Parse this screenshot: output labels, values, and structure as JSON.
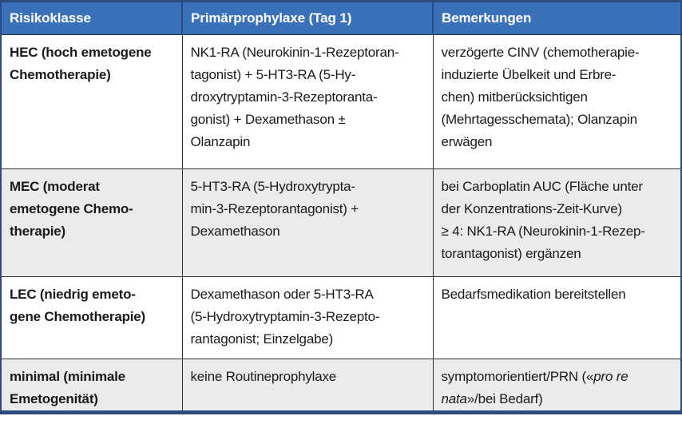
{
  "colors": {
    "header_bg": "#3b71b8",
    "header_text": "#ffffff",
    "frame": "#2b4a7d",
    "grid": "#2f2f2f",
    "row_bg": "#ffffff",
    "row_alt_bg": "#ebebeb",
    "text": "#1a1a1a"
  },
  "table": {
    "columns": [
      "Risikoklasse",
      "Primärprophylaxe (Tag 1)",
      "Bemerkungen"
    ],
    "rows": [
      {
        "risk": [
          "HEC (hoch emetogene",
          "Chemotherapie)"
        ],
        "prophylaxis": [
          "NK1-RA (Neurokinin-1-Rezeptoran-",
          "tagonist) + 5-HT3-RA (5-Hy-",
          "droxytryptamin-3-Rezeptoranta-",
          "gonist) + Dexamethason ±",
          "Olanzapin"
        ],
        "remarks": [
          "verzögerte CINV (chemotherapie-",
          "induzierte Übelkeit und Erbre-",
          "chen) mitberücksichtigen",
          "(Mehrtagesschemata); Olanzapin",
          "erwägen"
        ]
      },
      {
        "risk": [
          "MEC (moderat",
          "emetogene Chemo-",
          "therapie)"
        ],
        "prophylaxis": [
          "5-HT3-RA (5-Hydroxytrypta-",
          "min-3-Rezeptorantagonist) +",
          "Dexamethason"
        ],
        "remarks": [
          "bei Carboplatin AUC (Fläche unter",
          "der Konzentrations-Zeit-Kurve)",
          "≥ 4: NK1-RA (Neurokinin-1-Rezep-",
          "torantagonist) ergänzen"
        ]
      },
      {
        "risk": [
          "LEC (niedrig emeto-",
          "gene Chemotherapie)"
        ],
        "prophylaxis": [
          "Dexamethason oder 5-HT3-RA",
          "(5-Hydroxytryptamin-3-Rezepto-",
          "rantagonist; Einzelgabe)"
        ],
        "remarks": [
          "Bedarfsmedikation bereitstellen"
        ]
      },
      {
        "risk": [
          "minimal (minimale",
          "Emetogenität)"
        ],
        "prophylaxis": [
          "keine Routineprophylaxe"
        ],
        "remarks_lines": [
          {
            "before": "symptomorientiert/PRN («",
            "italic": "pro re"
          },
          {
            "italic": "nata",
            "after": "»/bei Bedarf)"
          }
        ]
      }
    ]
  }
}
